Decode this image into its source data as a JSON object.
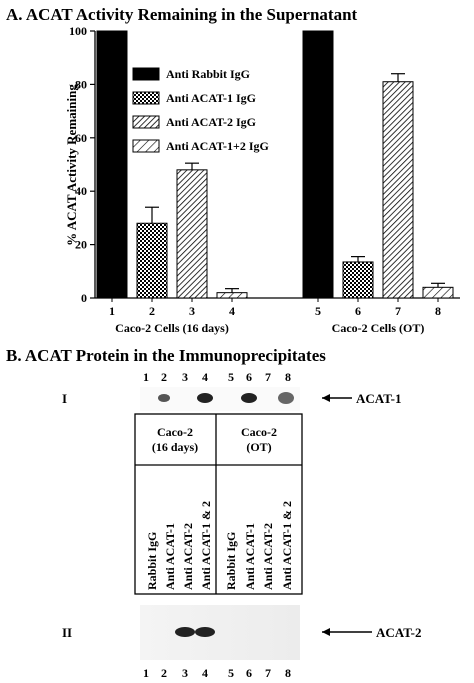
{
  "chart_data": {
    "type": "bar",
    "title": "A.  ACAT Activity Remaining in the Supernatant",
    "y_label": "% ACAT Activity Remaining",
    "categories": [
      "1",
      "2",
      "3",
      "4",
      "5",
      "6",
      "7",
      "8"
    ],
    "groups": [
      {
        "name": "Caco-2 Cells (16 days)",
        "categories": [
          0,
          3
        ]
      },
      {
        "name": "Caco-2 Cells (OT)",
        "categories": [
          4,
          7
        ]
      }
    ],
    "series": [
      {
        "name": "Anti Rabbit IgG",
        "color": "#000000",
        "pattern": "solid",
        "values": [
          100,
          null,
          null,
          null,
          100,
          null,
          null,
          null
        ],
        "errors": [
          null,
          null,
          null,
          null,
          null,
          null,
          null,
          null
        ]
      },
      {
        "name": "Anti ACAT-1 IgG",
        "color": "#000000",
        "pattern": "crosshatch",
        "values": [
          null,
          28,
          null,
          null,
          null,
          13.5,
          null,
          null
        ],
        "errors": [
          null,
          6,
          null,
          null,
          null,
          2,
          null,
          null
        ]
      },
      {
        "name": "Anti ACAT-2 IgG",
        "color": "#000000",
        "pattern": "hatch",
        "values": [
          null,
          null,
          48,
          null,
          null,
          null,
          81,
          null
        ],
        "errors": [
          null,
          null,
          2.5,
          null,
          null,
          null,
          3,
          null
        ]
      },
      {
        "name": "Anti ACAT-1+2 IgG",
        "color": "#000000",
        "pattern": "hatch-sparse",
        "values": [
          null,
          null,
          null,
          2,
          null,
          null,
          null,
          4
        ],
        "errors": [
          null,
          null,
          null,
          1.5,
          null,
          null,
          null,
          1.5
        ]
      }
    ],
    "ylim": [
      0,
      100
    ],
    "yticks": [
      0,
      20,
      40,
      60,
      80,
      100
    ],
    "grid": false,
    "legend": "upper-left"
  },
  "panel_b": {
    "title": "B.  ACAT Protein in the Immunoprecipitates",
    "lanes": [
      "1",
      "2",
      "3",
      "4",
      "5",
      "6",
      "7",
      "8"
    ],
    "blots": [
      {
        "label": "I",
        "target": "ACAT-1"
      },
      {
        "label": "II",
        "target": "ACAT-2"
      }
    ],
    "groups": [
      {
        "lines": [
          "Caco-2",
          "(16 days)"
        ]
      },
      {
        "lines": [
          "Caco-2",
          "(OT)"
        ]
      }
    ],
    "treatments": [
      "Rabbit IgG",
      "Anti ACAT-1",
      "Anti ACAT-2",
      "Anti ACAT-1 & 2"
    ]
  }
}
